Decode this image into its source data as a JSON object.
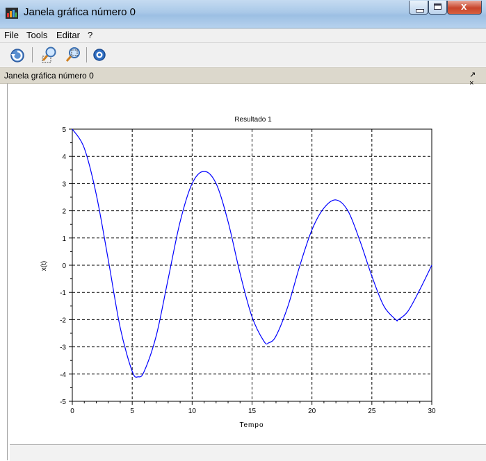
{
  "window": {
    "title": "Janela gráfica número 0",
    "close_glyph": "x"
  },
  "menu": {
    "items": [
      "File",
      "Tools",
      "Editar",
      "?"
    ]
  },
  "toolbar": {
    "icons": [
      "rotate-icon",
      "zoom-icon",
      "unzoom-icon",
      "help-icon"
    ]
  },
  "panel": {
    "title": "Janela gráfica número 0",
    "controls": "↗ ×"
  },
  "chart_data": {
    "type": "line",
    "title": "Resultado 1",
    "xlabel": "Tempo",
    "ylabel": "x(t)",
    "xlim": [
      0,
      30
    ],
    "ylim": [
      -5,
      5
    ],
    "xticks": [
      0,
      5,
      10,
      15,
      20,
      25,
      30
    ],
    "yticks": [
      -5,
      -4,
      -3,
      -2,
      -1,
      0,
      1,
      2,
      3,
      4,
      5
    ],
    "grid": true,
    "series": [
      {
        "color": "#0000ff",
        "x": [
          0,
          1,
          2,
          3,
          4,
          5,
          5.5,
          6,
          7,
          8,
          9,
          10,
          11,
          12,
          13,
          14,
          15,
          16,
          16.4,
          17,
          18,
          19,
          20,
          21,
          22,
          23,
          24,
          25,
          26,
          27,
          27.2,
          28,
          29,
          30
        ],
        "y": [
          5.0,
          4.3,
          2.6,
          0.2,
          -2.3,
          -3.9,
          -4.1,
          -3.9,
          -2.6,
          -0.5,
          1.6,
          3.0,
          3.45,
          3.0,
          1.6,
          -0.3,
          -1.9,
          -2.8,
          -2.85,
          -2.6,
          -1.5,
          0.0,
          1.3,
          2.1,
          2.4,
          2.0,
          0.9,
          -0.4,
          -1.5,
          -2.0,
          -2.0,
          -1.7,
          -0.9,
          0.0
        ]
      }
    ]
  }
}
